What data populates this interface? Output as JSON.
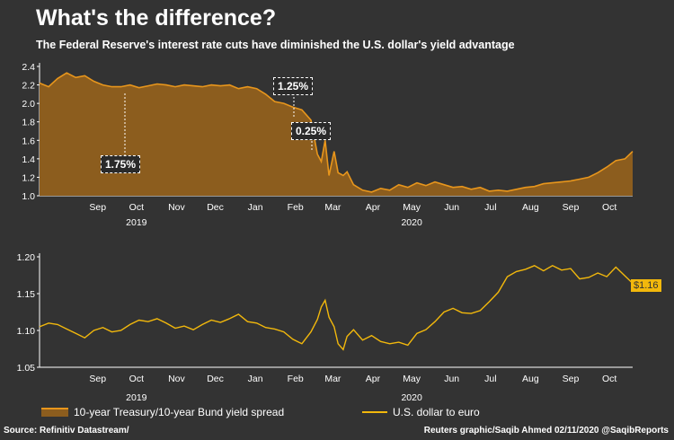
{
  "title": "What's the difference?",
  "subtitle": "The Federal Reserve's interest rate cuts have diminished the U.S. dollar's yield advantage",
  "source": "Source: Refinitiv Datastream/",
  "credit": "Reuters graphic/Saqib Ahmed 02/11/2020 @SaqibReports",
  "legend": {
    "spread": "10-year Treasury/10-year Bund yield spread",
    "fx": "U.S. dollar to euro"
  },
  "annotations": {
    "a1": "1.75%",
    "a2": "1.25%",
    "a3": "0.25%"
  },
  "last_value_label": "$1.16",
  "colors": {
    "background": "#333333",
    "area_fill": "#8c5d1e",
    "area_line": "#e8961c",
    "fx_line": "#f2b80c"
  },
  "chart_data": [
    {
      "type": "area",
      "title": "",
      "x_tick_labels": [
        "Sep",
        "Oct",
        "Nov",
        "Dec",
        "Jan",
        "Feb",
        "Mar",
        "Apr",
        "May",
        "Jun",
        "Jul",
        "Aug",
        "Sep",
        "Oct"
      ],
      "year_labels": [
        "2019",
        "2020"
      ],
      "y_ticks": [
        "1.0",
        "1.2",
        "1.4",
        "1.6",
        "1.8",
        "2.0",
        "2.2",
        "2.4"
      ],
      "ylim": [
        1.0,
        2.4
      ],
      "series": [
        {
          "name": "10-year Treasury/10-year Bund yield spread",
          "x": [
            "2019-08-01",
            "2019-08-08",
            "2019-08-15",
            "2019-08-22",
            "2019-08-29",
            "2019-09-05",
            "2019-09-12",
            "2019-09-19",
            "2019-09-26",
            "2019-10-03",
            "2019-10-10",
            "2019-10-17",
            "2019-10-24",
            "2019-10-31",
            "2019-11-07",
            "2019-11-14",
            "2019-11-21",
            "2019-11-28",
            "2019-12-05",
            "2019-12-12",
            "2019-12-19",
            "2019-12-26",
            "2020-01-02",
            "2020-01-09",
            "2020-01-16",
            "2020-01-23",
            "2020-01-30",
            "2020-02-06",
            "2020-02-13",
            "2020-02-20",
            "2020-02-27",
            "2020-03-03",
            "2020-03-06",
            "2020-03-09",
            "2020-03-12",
            "2020-03-16",
            "2020-03-19",
            "2020-03-23",
            "2020-03-26",
            "2020-03-31",
            "2020-04-07",
            "2020-04-14",
            "2020-04-21",
            "2020-04-28",
            "2020-05-05",
            "2020-05-12",
            "2020-05-19",
            "2020-05-26",
            "2020-06-02",
            "2020-06-09",
            "2020-06-16",
            "2020-06-23",
            "2020-06-30",
            "2020-07-07",
            "2020-07-14",
            "2020-07-21",
            "2020-07-28",
            "2020-08-04",
            "2020-08-11",
            "2020-08-18",
            "2020-08-25",
            "2020-09-01",
            "2020-09-08",
            "2020-09-15",
            "2020-09-22",
            "2020-09-29",
            "2020-10-06",
            "2020-10-13",
            "2020-10-20",
            "2020-10-27",
            "2020-11-02"
          ],
          "values": [
            2.22,
            2.18,
            2.27,
            2.33,
            2.28,
            2.3,
            2.24,
            2.2,
            2.18,
            2.18,
            2.2,
            2.17,
            2.19,
            2.21,
            2.2,
            2.18,
            2.2,
            2.19,
            2.18,
            2.2,
            2.19,
            2.2,
            2.16,
            2.18,
            2.16,
            2.1,
            2.02,
            2.0,
            1.96,
            1.93,
            1.82,
            1.45,
            1.37,
            1.6,
            1.22,
            1.48,
            1.25,
            1.22,
            1.26,
            1.12,
            1.06,
            1.04,
            1.08,
            1.06,
            1.12,
            1.09,
            1.14,
            1.11,
            1.15,
            1.12,
            1.09,
            1.1,
            1.07,
            1.09,
            1.05,
            1.06,
            1.05,
            1.07,
            1.09,
            1.1,
            1.13,
            1.14,
            1.15,
            1.16,
            1.18,
            1.2,
            1.25,
            1.31,
            1.38,
            1.4,
            1.48
          ]
        }
      ]
    },
    {
      "type": "line",
      "title": "",
      "x_tick_labels": [
        "Sep",
        "Oct",
        "Nov",
        "Dec",
        "Jan",
        "Feb",
        "Mar",
        "Apr",
        "May",
        "Jun",
        "Jul",
        "Aug",
        "Sep",
        "Oct"
      ],
      "year_labels": [
        "2019",
        "2020"
      ],
      "y_ticks": [
        "1.05",
        "1.10",
        "1.15",
        "1.20"
      ],
      "ylim": [
        1.05,
        1.2
      ],
      "series": [
        {
          "name": "U.S. dollar to euro",
          "x": [
            "2019-08-01",
            "2019-08-08",
            "2019-08-15",
            "2019-08-22",
            "2019-08-29",
            "2019-09-05",
            "2019-09-12",
            "2019-09-19",
            "2019-09-26",
            "2019-10-03",
            "2019-10-10",
            "2019-10-17",
            "2019-10-24",
            "2019-10-31",
            "2019-11-07",
            "2019-11-14",
            "2019-11-21",
            "2019-11-28",
            "2019-12-05",
            "2019-12-12",
            "2019-12-19",
            "2019-12-26",
            "2020-01-02",
            "2020-01-09",
            "2020-01-16",
            "2020-01-23",
            "2020-01-30",
            "2020-02-06",
            "2020-02-13",
            "2020-02-20",
            "2020-02-27",
            "2020-03-03",
            "2020-03-06",
            "2020-03-09",
            "2020-03-12",
            "2020-03-16",
            "2020-03-19",
            "2020-03-23",
            "2020-03-26",
            "2020-03-31",
            "2020-04-07",
            "2020-04-14",
            "2020-04-21",
            "2020-04-28",
            "2020-05-05",
            "2020-05-12",
            "2020-05-19",
            "2020-05-26",
            "2020-06-02",
            "2020-06-09",
            "2020-06-16",
            "2020-06-23",
            "2020-06-30",
            "2020-07-07",
            "2020-07-14",
            "2020-07-21",
            "2020-07-28",
            "2020-08-04",
            "2020-08-11",
            "2020-08-18",
            "2020-08-25",
            "2020-09-01",
            "2020-09-08",
            "2020-09-15",
            "2020-09-22",
            "2020-09-29",
            "2020-10-06",
            "2020-10-13",
            "2020-10-20",
            "2020-10-27",
            "2020-11-02"
          ],
          "values": [
            1.105,
            1.11,
            1.108,
            1.102,
            1.096,
            1.09,
            1.1,
            1.104,
            1.098,
            1.1,
            1.108,
            1.114,
            1.112,
            1.116,
            1.11,
            1.103,
            1.106,
            1.101,
            1.108,
            1.114,
            1.111,
            1.116,
            1.122,
            1.112,
            1.11,
            1.104,
            1.102,
            1.098,
            1.088,
            1.082,
            1.098,
            1.115,
            1.132,
            1.141,
            1.118,
            1.105,
            1.082,
            1.074,
            1.092,
            1.101,
            1.087,
            1.093,
            1.085,
            1.082,
            1.084,
            1.08,
            1.096,
            1.101,
            1.112,
            1.125,
            1.13,
            1.124,
            1.123,
            1.127,
            1.139,
            1.152,
            1.173,
            1.18,
            1.183,
            1.188,
            1.181,
            1.188,
            1.182,
            1.184,
            1.17,
            1.172,
            1.178,
            1.173,
            1.186,
            1.174,
            1.164
          ]
        }
      ]
    }
  ]
}
